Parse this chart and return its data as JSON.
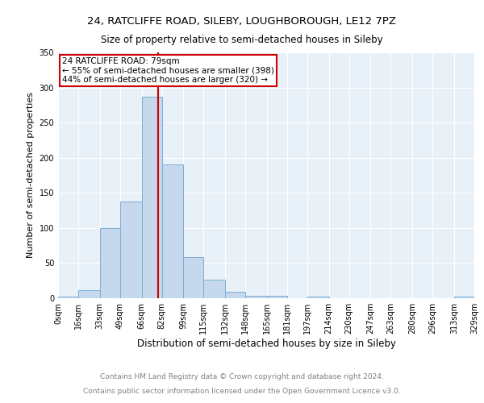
{
  "title1": "24, RATCLIFFE ROAD, SILEBY, LOUGHBOROUGH, LE12 7PZ",
  "title2": "Size of property relative to semi-detached houses in Sileby",
  "xlabel": "Distribution of semi-detached houses by size in Sileby",
  "ylabel": "Number of semi-detached properties",
  "bin_edges": [
    0,
    16,
    33,
    49,
    66,
    82,
    99,
    115,
    132,
    148,
    165,
    181,
    197,
    214,
    230,
    247,
    263,
    280,
    296,
    313,
    329
  ],
  "bar_heights": [
    2,
    12,
    100,
    138,
    287,
    190,
    58,
    26,
    9,
    3,
    3,
    0,
    2,
    0,
    0,
    0,
    0,
    0,
    0,
    2
  ],
  "bar_color": "#c5d8ed",
  "bar_edge_color": "#7bafd4",
  "property_size": 79,
  "annotation_line1": "24 RATCLIFFE ROAD: 79sqm",
  "annotation_line2": "← 55% of semi-detached houses are smaller (398)",
  "annotation_line3": "44% of semi-detached houses are larger (320) →",
  "vline_color": "#cc0000",
  "box_edge_color": "#cc0000",
  "ylim": [
    0,
    350
  ],
  "yticks": [
    0,
    50,
    100,
    150,
    200,
    250,
    300,
    350
  ],
  "background_color": "#e8f0f8",
  "footer1": "Contains HM Land Registry data © Crown copyright and database right 2024.",
  "footer2": "Contains public sector information licensed under the Open Government Licence v3.0.",
  "title1_fontsize": 9.5,
  "title2_fontsize": 8.5,
  "xlabel_fontsize": 8.5,
  "ylabel_fontsize": 8,
  "tick_fontsize": 7,
  "annotation_fontsize": 7.5,
  "footer_fontsize": 6.5
}
